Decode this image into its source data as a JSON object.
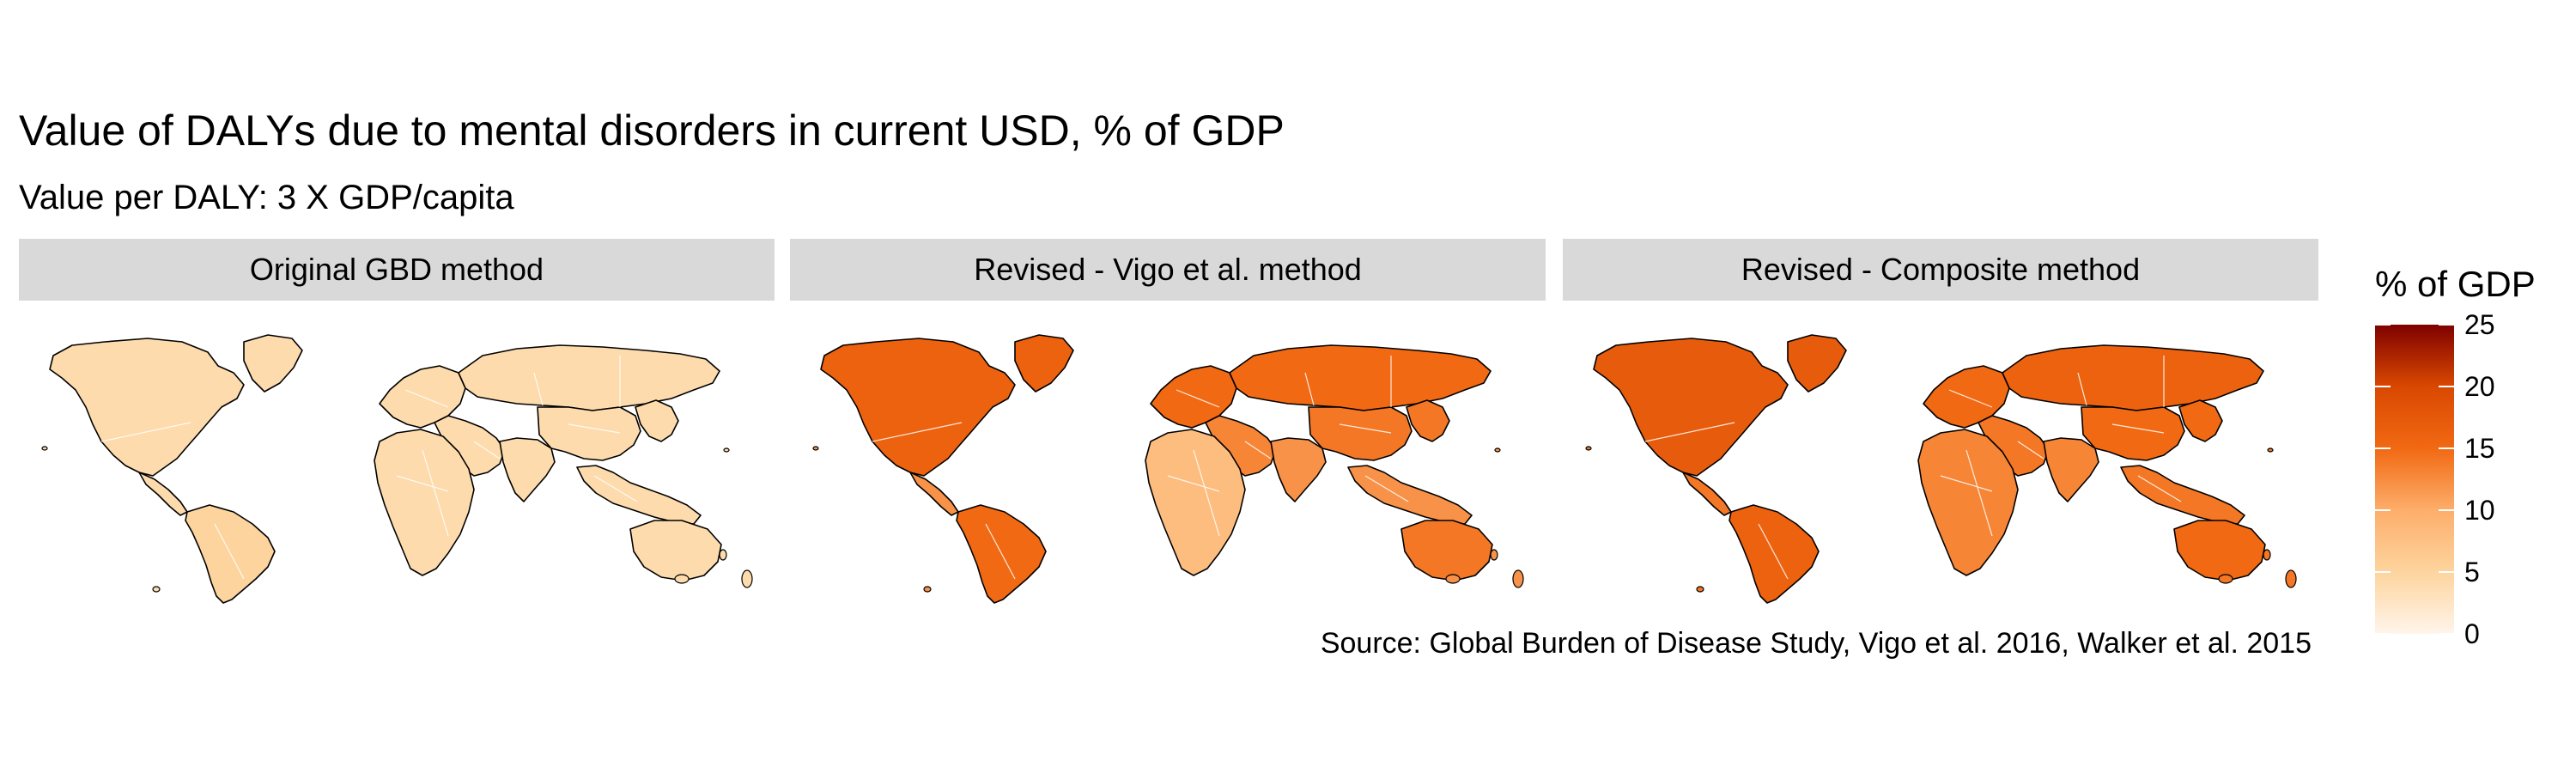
{
  "title": "Value of DALYs due to mental disorders in current USD, % of GDP",
  "subtitle": "Value per DALY: 3 X GDP/capita",
  "source": "Source: Global Burden of Disease Study, Vigo et al. 2016, Walker et al. 2015",
  "legend": {
    "title": "% of GDP",
    "min": 0,
    "max": 25,
    "ticks": [
      "0",
      "5",
      "10",
      "15",
      "20",
      "25"
    ],
    "colors": [
      "#fff5eb",
      "#fdd49e",
      "#fdae6b",
      "#f16913",
      "#d94801",
      "#7f0000"
    ]
  },
  "panels": [
    {
      "label": "Original GBD method",
      "regions": {
        "north_america": 4,
        "greenland": 4,
        "central_america": 4,
        "south_america": 5,
        "europe": 4,
        "russia": 4,
        "middle_east": 4,
        "africa": 4,
        "south_asia": 4,
        "china": 4,
        "east_asia": 4,
        "southeast_asia": 4,
        "australia": 4
      }
    },
    {
      "label": "Revised - Vigo et al. method",
      "regions": {
        "north_america": 16,
        "greenland": 16,
        "central_america": 12,
        "south_america": 15,
        "europe": 15,
        "russia": 15,
        "middle_east": 13,
        "africa": 8,
        "south_asia": 12,
        "china": 14,
        "east_asia": 14,
        "southeast_asia": 12,
        "australia": 14
      }
    },
    {
      "label": "Revised - Composite method",
      "regions": {
        "north_america": 17,
        "greenland": 17,
        "central_america": 14,
        "south_america": 16,
        "europe": 15,
        "russia": 16,
        "middle_east": 14,
        "africa": 13,
        "south_asia": 13,
        "china": 15,
        "east_asia": 15,
        "southeast_asia": 14,
        "australia": 15
      }
    }
  ]
}
